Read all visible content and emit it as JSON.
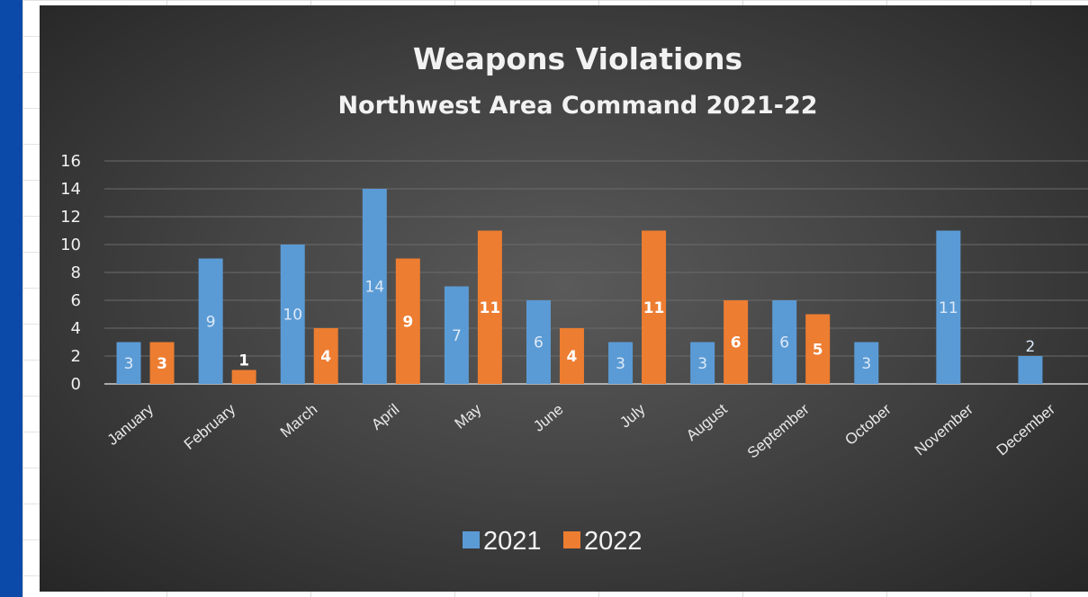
{
  "chart_data": {
    "type": "bar",
    "title": "Weapons Violations",
    "subtitle": "Northwest Area Command 2021-22",
    "xlabel": "",
    "ylabel": "",
    "ylim": [
      0,
      16
    ],
    "yticks": [
      0,
      2,
      4,
      6,
      8,
      10,
      12,
      14,
      16
    ],
    "grid": true,
    "legend_position": "bottom",
    "categories": [
      "January",
      "February",
      "March",
      "April",
      "May",
      "June",
      "July",
      "August",
      "September",
      "October",
      "November",
      "December"
    ],
    "series": [
      {
        "name": "2021",
        "color": "#5b9bd5",
        "values": [
          3,
          9,
          10,
          14,
          7,
          6,
          3,
          3,
          6,
          3,
          11,
          2
        ]
      },
      {
        "name": "2022",
        "color": "#ed7d31",
        "values": [
          3,
          1,
          4,
          9,
          11,
          4,
          11,
          6,
          5,
          null,
          null,
          null
        ]
      }
    ]
  },
  "colors": {
    "page_background": "#ffffff",
    "side_strip": "#0b4aa8",
    "chart_background": "#444444"
  }
}
